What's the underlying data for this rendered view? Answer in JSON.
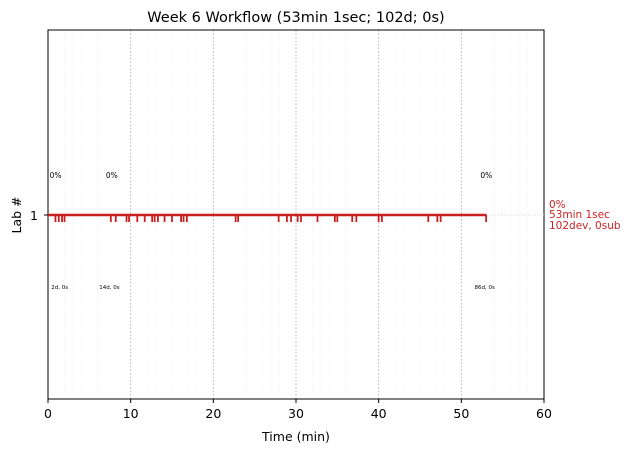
{
  "chart_data": {
    "type": "line",
    "title": "Week 6 Workflow (53min 1sec; 102d; 0s)",
    "xlabel": "Time (min)",
    "ylabel": "Lab #",
    "xlim": [
      0,
      60
    ],
    "xticks": [
      "0",
      "10",
      "20",
      "30",
      "40",
      "50",
      "60"
    ],
    "ytick": "1",
    "grid": "dotted vertical lines every 10 min, faint minor lines every 1 min",
    "series": [
      {
        "lab": 1,
        "x_start": 0,
        "x_end": 53.02,
        "color": "#c82020",
        "event_ticks_min": [
          0.9,
          1.3,
          1.7,
          2.0,
          7.6,
          8.2,
          9.5,
          9.8,
          10.8,
          11.7,
          12.6,
          12.9,
          13.3,
          14.1,
          15.0,
          16.1,
          16.4,
          16.8,
          22.7,
          23.0,
          27.9,
          28.9,
          29.4,
          30.2,
          30.6,
          32.6,
          34.7,
          35.0,
          36.8,
          37.3,
          40.0,
          40.4,
          46.0,
          47.1,
          47.5,
          53.0
        ],
        "summary": [
          "0%",
          "53min 1sec",
          "102dev, 0sub"
        ]
      }
    ],
    "annotations_top": [
      {
        "x": 0.2,
        "text": "0%"
      },
      {
        "x": 7.0,
        "text": "0%"
      },
      {
        "x": 52.3,
        "text": "0%"
      }
    ],
    "annotations_bottom": [
      {
        "x": 0.4,
        "text": "2d, 0s"
      },
      {
        "x": 6.2,
        "text": "14d, 0s"
      },
      {
        "x": 51.6,
        "text": "86d, 0s"
      }
    ]
  }
}
